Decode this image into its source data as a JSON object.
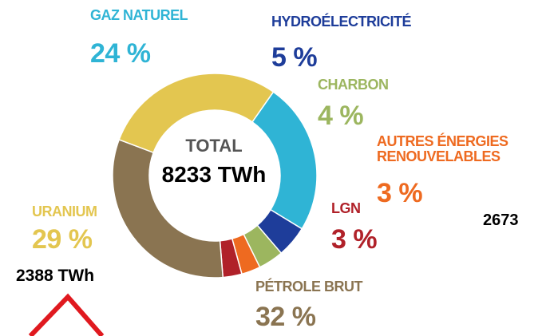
{
  "chart_data": {
    "type": "donut",
    "categories": [
      "GAZ NATUREL",
      "HYDROÉLECTRICITÉ",
      "CHARBON",
      "AUTRES ÉNERGIES RENOUVELABLES",
      "LGN",
      "PÉTROLE BRUT",
      "URANIUM"
    ],
    "values": [
      24,
      5,
      4,
      3,
      3,
      32,
      29
    ],
    "value_labels": [
      "24 %",
      "5 %",
      "4 %",
      "3 %",
      "3 %",
      "32 %",
      "29 %"
    ],
    "colors": [
      "#2fb4d5",
      "#1e3d9a",
      "#9cb65f",
      "#ee6a20",
      "#b02129",
      "#8a7451",
      "#e3c650"
    ],
    "center_label": "TOTAL",
    "center_value": "8233 TWh",
    "annotations": [
      "2673",
      "2388 TWh"
    ]
  }
}
